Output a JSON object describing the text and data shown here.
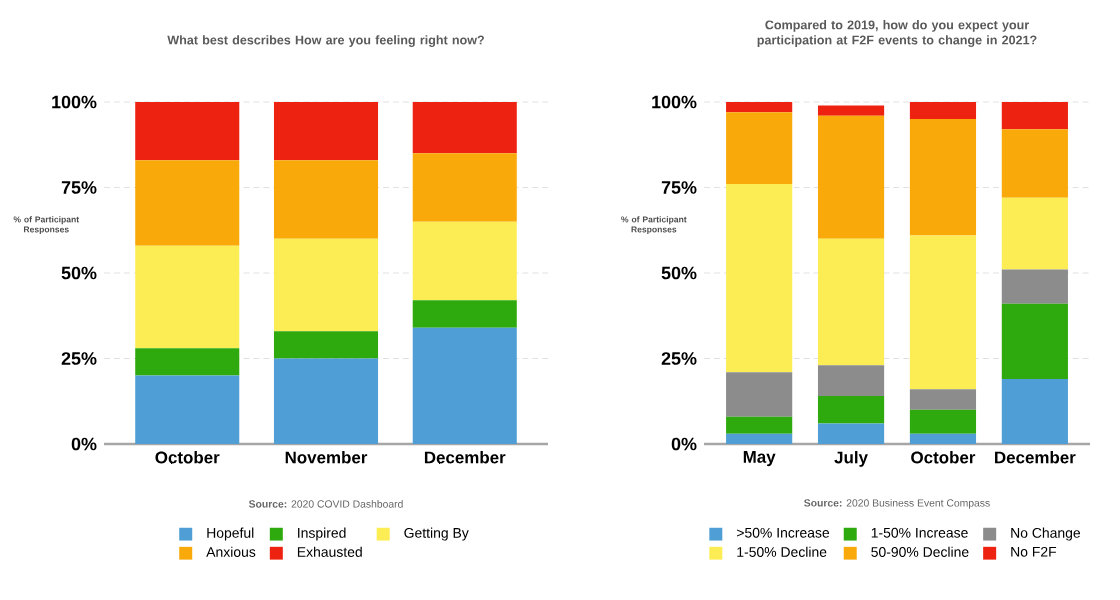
{
  "chart_data": [
    {
      "type": "bar",
      "stacked": true,
      "title": "What best describes How are you feeling right now?",
      "ylabel": "% of Participant Responses",
      "categories": [
        "October",
        "November",
        "December"
      ],
      "series": [
        {
          "name": "Hopeful",
          "color": "#4f9fd6",
          "values": [
            20,
            25,
            34
          ]
        },
        {
          "name": "Inspired",
          "color": "#2eaa0e",
          "values": [
            8,
            8,
            8
          ]
        },
        {
          "name": "Getting By",
          "color": "#fded55",
          "values": [
            30,
            27,
            23
          ]
        },
        {
          "name": "Anxious",
          "color": "#f9aa0a",
          "values": [
            25,
            23,
            20
          ]
        },
        {
          "name": "Exhausted",
          "color": "#ee2210",
          "values": [
            17,
            17,
            15
          ]
        }
      ],
      "ylim": [
        0,
        100
      ],
      "yticks": [
        {
          "value": 0,
          "label": "0%"
        },
        {
          "value": 25,
          "label": "25%"
        },
        {
          "value": 50,
          "label": "50%"
        },
        {
          "value": 75,
          "label": "75%"
        },
        {
          "value": 100,
          "label": "100%"
        }
      ],
      "grid": "y",
      "legend": "bottom",
      "annotations": [
        "**Source:** 2020 COVID Dashboard"
      ]
    },
    {
      "type": "bar",
      "stacked": true,
      "title": "Compared to 2019, how do you expect your participation at F2F events to change in 2021?",
      "ylabel": "% of Participant Responses",
      "categories": [
        "May",
        "July",
        "October",
        "December"
      ],
      "series": [
        {
          "name": ">50% Increase",
          "color": "#4f9fd6",
          "values": [
            3,
            6,
            3,
            19
          ]
        },
        {
          "name": "1-50% Increase",
          "color": "#2eaa0e",
          "values": [
            5,
            8,
            7,
            22
          ]
        },
        {
          "name": "No Change",
          "color": "#8c8c8c",
          "values": [
            13,
            9,
            6,
            10
          ]
        },
        {
          "name": "1-50% Decline",
          "color": "#fded55",
          "values": [
            55,
            37,
            45,
            21
          ]
        },
        {
          "name": "50-90% Decline",
          "color": "#f9aa0a",
          "values": [
            21,
            36,
            34,
            20
          ]
        },
        {
          "name": "No F2F",
          "color": "#ee2210",
          "values": [
            3,
            3,
            5,
            8
          ]
        }
      ],
      "ylim": [
        0,
        100
      ],
      "yticks": [
        {
          "value": 0,
          "label": "0%"
        },
        {
          "value": 25,
          "label": "25%"
        },
        {
          "value": 50,
          "label": "50%"
        },
        {
          "value": 75,
          "label": "75%"
        },
        {
          "value": 100,
          "label": "100%"
        }
      ],
      "grid": "y",
      "legend": "bottom",
      "annotations": [
        "**Source:** 2020 Business Event Compass"
      ]
    }
  ]
}
